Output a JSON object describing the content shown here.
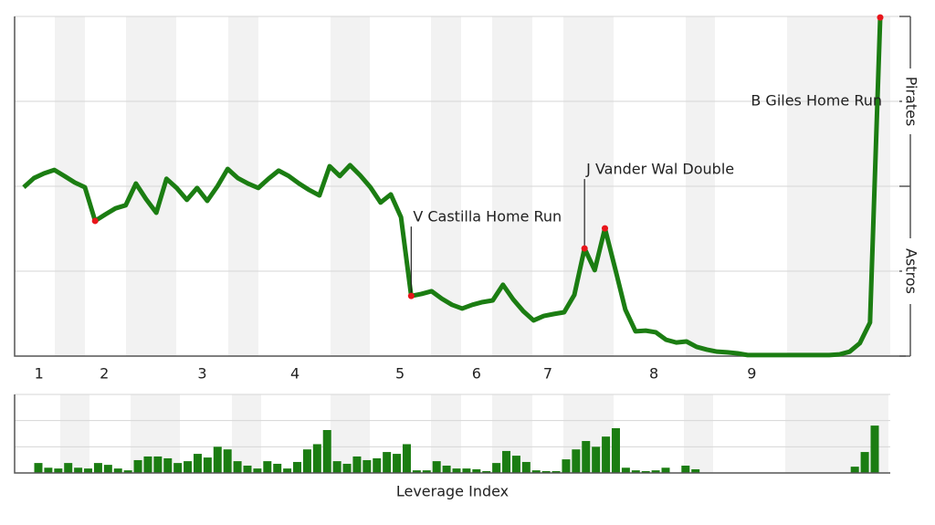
{
  "chart_data": [
    {
      "type": "line",
      "team_top": "Pirates",
      "team_bottom": "Astros",
      "xlim": [
        0,
        84
      ],
      "ylim": [
        0,
        100
      ],
      "yticks": [
        0,
        25,
        50,
        75,
        100
      ],
      "grid": true,
      "xticks": [
        {
          "value": 1.5,
          "label": "1"
        },
        {
          "value": 7.9,
          "label": "2"
        },
        {
          "value": 17.5,
          "label": "3"
        },
        {
          "value": 26.6,
          "label": "4"
        },
        {
          "value": 36.9,
          "label": "5"
        },
        {
          "value": 44.4,
          "label": "6"
        },
        {
          "value": 51.4,
          "label": "7"
        },
        {
          "value": 61.8,
          "label": "8"
        },
        {
          "value": 71.4,
          "label": "9"
        }
      ],
      "series": [
        {
          "color": "#1b7d12",
          "values": [
            49.7,
            52.4,
            53.8,
            54.8,
            53.0,
            51.1,
            49.7,
            39.8,
            41.7,
            43.5,
            44.4,
            50.8,
            46.2,
            42.2,
            52.2,
            49.5,
            46.0,
            49.5,
            45.7,
            50.0,
            55.1,
            52.4,
            50.8,
            49.5,
            52.2,
            54.6,
            53.0,
            50.8,
            48.9,
            47.3,
            55.9,
            53.0,
            56.2,
            53.2,
            49.7,
            45.2,
            47.6,
            40.9,
            17.7,
            18.3,
            19.1,
            16.9,
            15.1,
            14.0,
            15.1,
            15.9,
            16.4,
            21.0,
            16.7,
            13.2,
            10.5,
            11.8,
            12.4,
            12.9,
            18.0,
            31.7,
            25.3,
            37.6,
            25.8,
            13.7,
            7.3,
            7.5,
            7.0,
            4.8,
            4.0,
            4.3,
            2.7,
            1.9,
            1.3,
            1.1,
            0.8,
            0.3,
            0.3,
            0.3,
            0.3,
            0.3,
            0.3,
            0.3,
            0.3,
            0.3,
            0.5,
            1.3,
            3.8,
            9.9,
            99.7
          ]
        }
      ],
      "highlight_color": "#e8151b",
      "highlights": [
        7,
        38,
        55,
        57,
        84
      ],
      "annotations": [
        {
          "x": 38,
          "label": "V Castilla Home Run"
        },
        {
          "x": 55,
          "label": "J Vander Wal Double"
        },
        {
          "x": 84,
          "label": "B Giles Home Run"
        }
      ]
    },
    {
      "type": "bar",
      "xlabel": "Leverage Index",
      "color": "#1b7d12",
      "ylim": [
        0,
        3
      ],
      "yticks": [
        0,
        1,
        2,
        3
      ],
      "grid": true,
      "values": [
        0.38,
        0.2,
        0.17,
        0.38,
        0.2,
        0.17,
        0.38,
        0.31,
        0.17,
        0.1,
        0.49,
        0.63,
        0.63,
        0.56,
        0.38,
        0.45,
        0.73,
        0.59,
        1.0,
        0.9,
        0.45,
        0.28,
        0.17,
        0.45,
        0.35,
        0.17,
        0.42,
        0.9,
        1.1,
        1.64,
        0.45,
        0.35,
        0.63,
        0.49,
        0.56,
        0.8,
        0.73,
        1.1,
        0.1,
        0.1,
        0.45,
        0.28,
        0.17,
        0.17,
        0.14,
        0.07,
        0.38,
        0.84,
        0.66,
        0.42,
        0.1,
        0.07,
        0.07,
        0.52,
        0.9,
        1.22,
        1.0,
        1.39,
        1.71,
        0.2,
        0.1,
        0.07,
        0.1,
        0.2,
        0,
        0.28,
        0.14,
        0,
        0,
        0,
        0,
        0,
        0,
        0,
        0,
        0,
        0,
        0,
        0,
        0,
        0,
        0,
        0.24,
        0.8,
        1.81
      ]
    }
  ]
}
